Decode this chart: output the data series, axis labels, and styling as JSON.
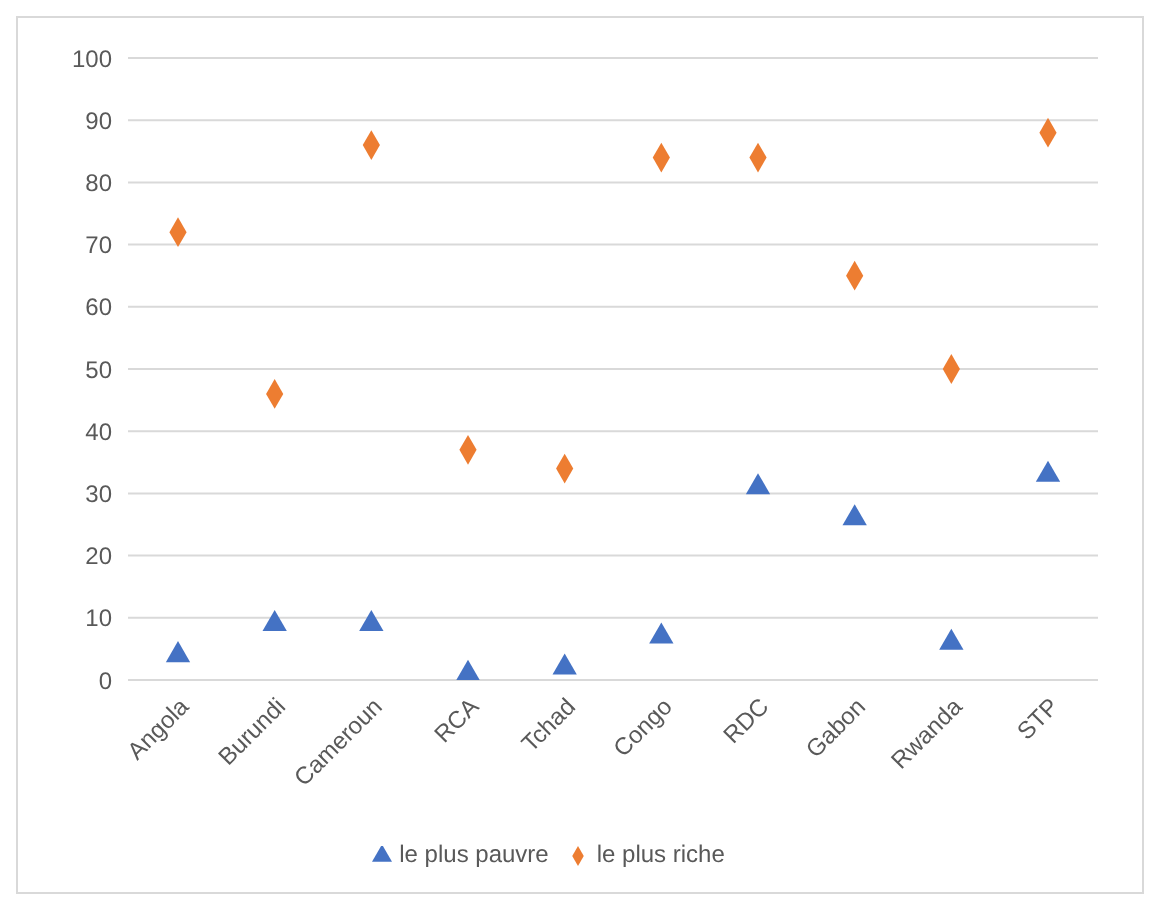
{
  "chart_data": {
    "type": "scatter",
    "categories": [
      "Angola",
      "Burundi",
      "Cameroun",
      "RCA",
      "Tchad",
      "Congo",
      "RDC",
      "Gabon",
      "Rwanda",
      "STP"
    ],
    "series": [
      {
        "name": "le plus pauvre",
        "color": "#4472c4",
        "marker": "triangle",
        "values": [
          4,
          9,
          9,
          1,
          2,
          7,
          31,
          26,
          6,
          33
        ]
      },
      {
        "name": "le plus riche",
        "color": "#ed7d31",
        "marker": "diamond",
        "values": [
          72,
          46,
          86,
          37,
          34,
          84,
          84,
          65,
          50,
          88
        ]
      }
    ],
    "ylim": [
      0,
      100
    ],
    "yticks": [
      0,
      10,
      20,
      30,
      40,
      50,
      60,
      70,
      80,
      90,
      100
    ],
    "grid": "y",
    "legend": "bottom"
  }
}
